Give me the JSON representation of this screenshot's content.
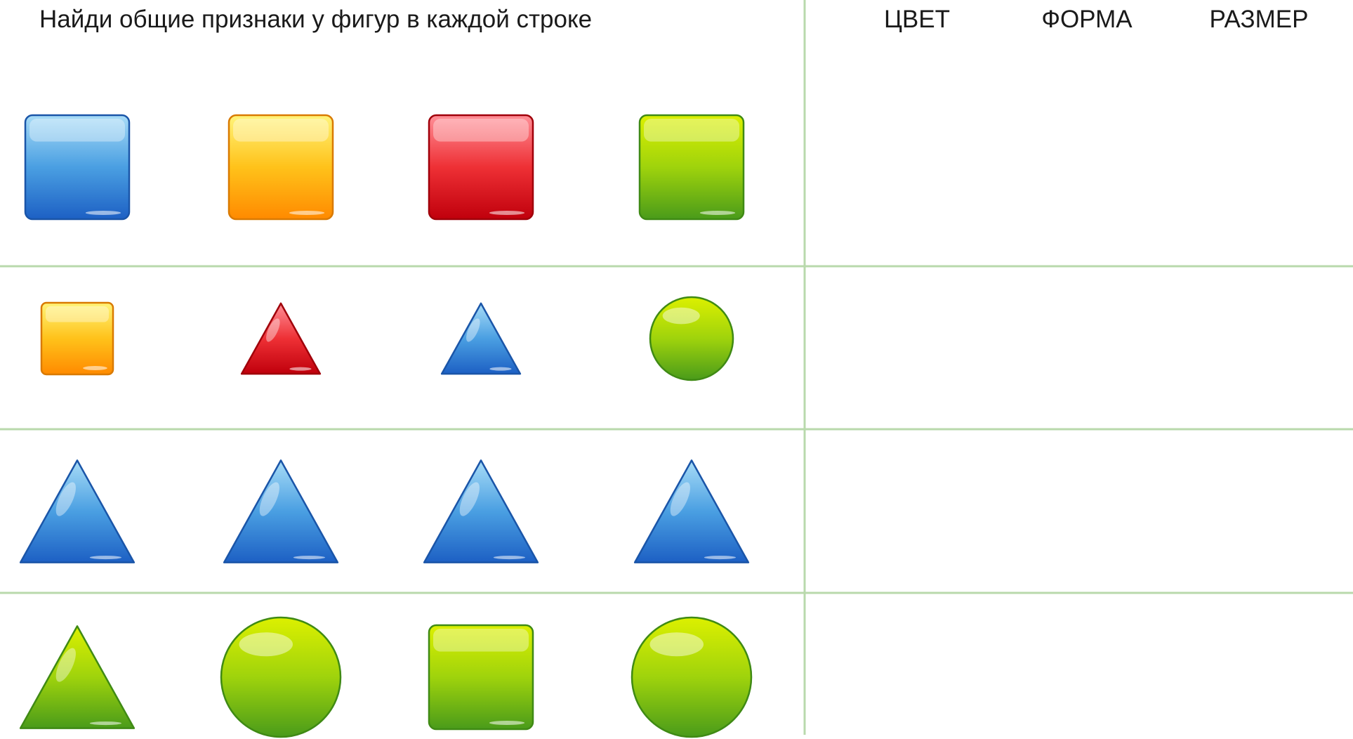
{
  "instruction": "Найди общие признаки у фигур в каждой строке",
  "answer_columns": [
    "ЦВЕТ",
    "ФОРМА",
    "РАЗМЕР"
  ],
  "grid_line_color": "#b9d9ac",
  "palette": {
    "blue": {
      "light": "#a8dcf7",
      "mid": "#4a9fe2",
      "dark": "#1d60c4",
      "edge": "#1a55a8"
    },
    "yellow": {
      "light": "#fff47a",
      "mid": "#ffc21a",
      "dark": "#ff8a00",
      "edge": "#d97a00"
    },
    "red": {
      "light": "#ff8f97",
      "mid": "#ee3035",
      "dark": "#c0000c",
      "edge": "#a0000a"
    },
    "green": {
      "light": "#dcf000",
      "mid": "#9fd30c",
      "dark": "#4a9b1a",
      "edge": "#3f8a14"
    }
  },
  "rows": [
    [
      {
        "shape": "square",
        "color": "blue",
        "size": "large"
      },
      {
        "shape": "square",
        "color": "yellow",
        "size": "large"
      },
      {
        "shape": "square",
        "color": "red",
        "size": "large"
      },
      {
        "shape": "square",
        "color": "green",
        "size": "large"
      }
    ],
    [
      {
        "shape": "square",
        "color": "yellow",
        "size": "small"
      },
      {
        "shape": "triangle",
        "color": "red",
        "size": "small"
      },
      {
        "shape": "triangle",
        "color": "blue",
        "size": "small"
      },
      {
        "shape": "circle",
        "color": "green",
        "size": "small"
      }
    ],
    [
      {
        "shape": "triangle",
        "color": "blue",
        "size": "large"
      },
      {
        "shape": "triangle",
        "color": "blue",
        "size": "large"
      },
      {
        "shape": "triangle",
        "color": "blue",
        "size": "large"
      },
      {
        "shape": "triangle",
        "color": "blue",
        "size": "large"
      }
    ],
    [
      {
        "shape": "triangle",
        "color": "green",
        "size": "large"
      },
      {
        "shape": "circle",
        "color": "green",
        "size": "large"
      },
      {
        "shape": "square",
        "color": "green",
        "size": "large"
      },
      {
        "shape": "circle",
        "color": "green",
        "size": "large"
      }
    ]
  ]
}
